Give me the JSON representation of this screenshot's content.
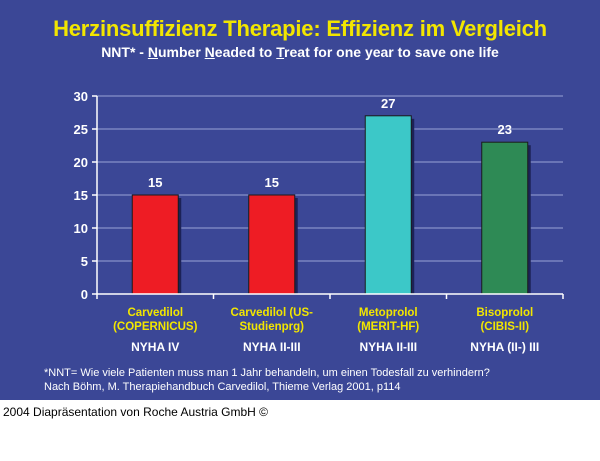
{
  "slide": {
    "title": "Herzinsuffizienz Therapie: Effizienz im Vergleich",
    "subtitle_parts": [
      {
        "text": "NNT* - ",
        "u": false
      },
      {
        "text": "N",
        "u": true
      },
      {
        "text": "umber ",
        "u": false
      },
      {
        "text": "N",
        "u": true
      },
      {
        "text": "eaded to ",
        "u": false
      },
      {
        "text": "T",
        "u": true
      },
      {
        "text": "reat for one year to save one life",
        "u": false
      }
    ],
    "background_color": "#3b4796"
  },
  "chart_data": {
    "type": "bar",
    "title": "",
    "xlabel": "",
    "ylabel": "",
    "categories": [
      [
        "Carvedilol",
        "(COPERNICUS)"
      ],
      [
        "Carvedilol (US-",
        "Studienprg)"
      ],
      [
        "Metoprolol",
        "(MERIT-HF)"
      ],
      [
        "Bisoprolol",
        "(CIBIS-II)"
      ]
    ],
    "nyha_labels": [
      "NYHA IV",
      "NYHA II-III",
      "NYHA II-III",
      "NYHA (II-) III"
    ],
    "values": [
      15,
      15,
      27,
      23
    ],
    "data_labels": [
      "15",
      "15",
      "27",
      "23"
    ],
    "bar_colors": [
      "#ee1c24",
      "#ee1c24",
      "#3cc8c8",
      "#2e8a55"
    ],
    "ylim": [
      0,
      30
    ],
    "yticks": [
      0,
      5,
      10,
      15,
      20,
      25,
      30
    ],
    "grid": true,
    "legend": "none"
  },
  "footnote": {
    "line1": "*NNT= Wie viele Patienten muss man 1 Jahr behandeln, um einen Todesfall zu verhindern?",
    "line2": "Nach Böhm, M. Therapiehandbuch Carvedilol, Thieme Verlag 2001, p114"
  },
  "copyright": "2004 Diapräsentation von Roche Austria GmbH ©"
}
